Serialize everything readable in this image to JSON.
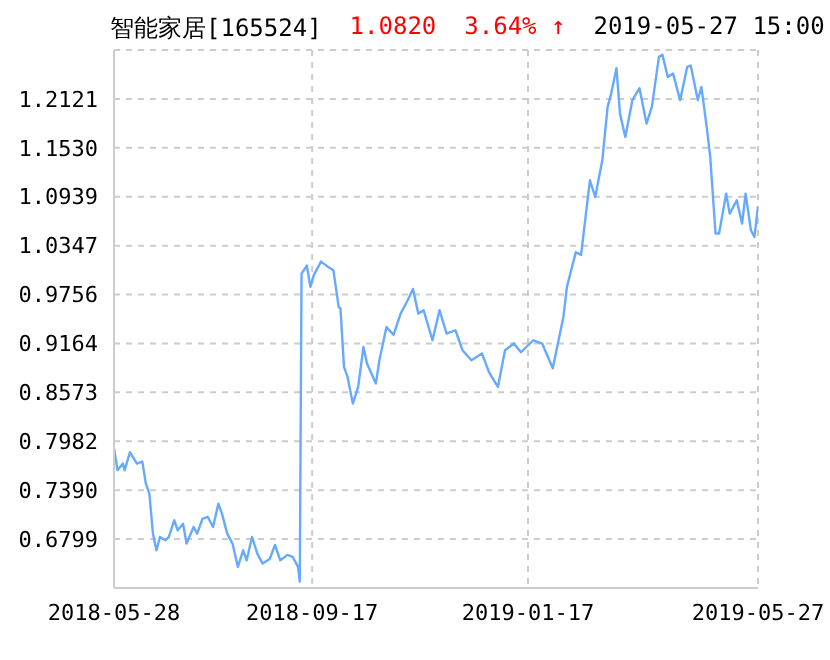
{
  "chart_data": {
    "type": "line",
    "title": "智能家居[165524]",
    "annotations": [
      "1.0820",
      "3.64% ↑",
      "2019-05-27 15:00"
    ],
    "x": [
      "2018-05-28",
      "2018-05-30",
      "2018-06-02",
      "2018-06-03",
      "2018-06-06",
      "2018-06-10",
      "2018-06-13",
      "2018-06-15",
      "2018-06-17",
      "2018-06-19",
      "2018-06-21",
      "2018-06-23",
      "2018-06-26",
      "2018-06-28",
      "2018-07-01",
      "2018-07-03",
      "2018-07-06",
      "2018-07-08",
      "2018-07-12",
      "2018-07-14",
      "2018-07-17",
      "2018-07-20",
      "2018-07-23",
      "2018-07-26",
      "2018-07-28",
      "2018-07-31",
      "2018-08-03",
      "2018-08-06",
      "2018-08-09",
      "2018-08-11",
      "2018-08-14",
      "2018-08-17",
      "2018-08-20",
      "2018-08-24",
      "2018-08-27",
      "2018-08-30",
      "2018-09-03",
      "2018-09-06",
      "2018-09-09",
      "2018-09-10",
      "2018-09-11",
      "2018-09-14",
      "2018-09-16",
      "2018-09-18",
      "2018-09-22",
      "2018-09-26",
      "2018-09-29",
      "2018-10-02",
      "2018-10-03",
      "2018-10-05",
      "2018-10-07",
      "2018-10-10",
      "2018-10-13",
      "2018-10-14",
      "2018-10-16",
      "2018-10-18",
      "2018-10-23",
      "2018-10-25",
      "2018-10-29",
      "2018-11-02",
      "2018-11-06",
      "2018-11-10",
      "2018-11-13",
      "2018-11-16",
      "2018-11-19",
      "2018-11-24",
      "2018-11-28",
      "2018-12-02",
      "2018-12-07",
      "2018-12-11",
      "2018-12-16",
      "2018-12-22",
      "2018-12-26",
      "2018-12-31",
      "2019-01-04",
      "2019-01-09",
      "2019-01-13",
      "2019-01-20",
      "2019-01-25",
      "2019-01-31",
      "2019-02-06",
      "2019-02-08",
      "2019-02-13",
      "2019-02-16",
      "2019-02-21",
      "2019-02-24",
      "2019-02-28",
      "2019-03-03",
      "2019-03-05",
      "2019-03-08",
      "2019-03-10",
      "2019-03-13",
      "2019-03-17",
      "2019-03-21",
      "2019-03-25",
      "2019-03-28",
      "2019-04-01",
      "2019-04-03",
      "2019-04-06",
      "2019-04-09",
      "2019-04-13",
      "2019-04-17",
      "2019-04-19",
      "2019-04-23",
      "2019-04-25",
      "2019-04-28",
      "2019-04-30",
      "2019-05-03",
      "2019-05-05",
      "2019-05-09",
      "2019-05-11",
      "2019-05-15",
      "2019-05-18",
      "2019-05-20",
      "2019-05-23",
      "2019-05-25",
      "2019-05-27"
    ],
    "series": [
      {
        "color": "#66aaff",
        "values": [
          0.7897,
          0.7631,
          0.7712,
          0.7631,
          0.7849,
          0.7712,
          0.7736,
          0.747,
          0.7349,
          0.6866,
          0.6664,
          0.6825,
          0.6785,
          0.6825,
          0.7027,
          0.6906,
          0.6986,
          0.6745,
          0.6946,
          0.6866,
          0.7043,
          0.7067,
          0.6946,
          0.7228,
          0.7107,
          0.6866,
          0.6745,
          0.6463,
          0.6664,
          0.6543,
          0.6825,
          0.6624,
          0.6503,
          0.6559,
          0.6728,
          0.6543,
          0.6608,
          0.6583,
          0.6463,
          0.6285,
          1.0009,
          1.0106,
          0.9848,
          0.9993,
          1.0154,
          1.009,
          1.0049,
          0.9606,
          0.959,
          0.8881,
          0.876,
          0.8437,
          0.8639,
          0.88,
          0.9122,
          0.8921,
          0.8679,
          0.8961,
          0.9364,
          0.9268,
          0.9525,
          0.9687,
          0.9824,
          0.9525,
          0.9566,
          0.9203,
          0.9566,
          0.9284,
          0.9324,
          0.9082,
          0.8961,
          0.9042,
          0.8816,
          0.8639,
          0.9082,
          0.9163,
          0.9058,
          0.9203,
          0.9163,
          0.8864,
          0.9485,
          0.9848,
          1.0267,
          1.0235,
          1.1137,
          1.0936,
          1.1379,
          1.2024,
          1.2185,
          1.2491,
          1.1943,
          1.1661,
          1.2105,
          1.225,
          1.1823,
          1.2024,
          1.2629,
          1.2653,
          1.2387,
          1.2427,
          1.2105,
          1.2508,
          1.2524,
          1.2105,
          1.2266,
          1.1782,
          1.142,
          1.0493,
          1.0493,
          1.0976,
          1.0734,
          1.0896,
          1.0613,
          1.0976,
          1.0533,
          1.0452,
          1.082
        ]
      }
    ],
    "xlim": [
      "2018-05-28",
      "2019-05-27"
    ],
    "xticks": [
      "2018-05-28",
      "2018-09-17",
      "2019-01-17",
      "2019-05-27"
    ],
    "ylim": [
      0.6208,
      1.2712
    ],
    "yticks": [
      {
        "value": 0.6799,
        "label": "0.6799"
      },
      {
        "value": 0.739,
        "label": "0.7390"
      },
      {
        "value": 0.7982,
        "label": "0.7982"
      },
      {
        "value": 0.8573,
        "label": "0.8573"
      },
      {
        "value": 0.9164,
        "label": "0.9164"
      },
      {
        "value": 0.9756,
        "label": "0.9756"
      },
      {
        "value": 1.0347,
        "label": "1.0347"
      },
      {
        "value": 1.0939,
        "label": "1.0939"
      },
      {
        "value": 1.153,
        "label": "1.1530"
      },
      {
        "value": 1.2121,
        "label": "1.2121"
      }
    ],
    "grid": true,
    "legend": false,
    "marker": "none",
    "line_style": "solid"
  }
}
